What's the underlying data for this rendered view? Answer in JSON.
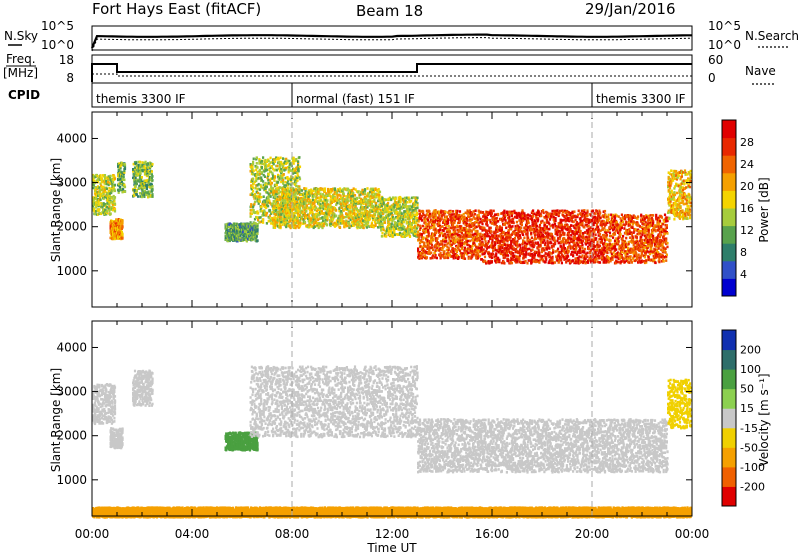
{
  "header": {
    "title": "Fort Hays East (fitACF)",
    "beam": "Beam 18",
    "date": "29/Jan/2016"
  },
  "side_labels": {
    "nsky": "N.Sky",
    "nsearch": "N.Search",
    "freq": "Freq.",
    "freq_unit": "[MHz]",
    "nave": "Nave",
    "cpid": "CPID"
  },
  "noise_axis": {
    "left_ticks": [
      "10^5",
      "10^0"
    ],
    "right_ticks": [
      "10^5",
      "10^0"
    ]
  },
  "freq_axis": {
    "left_ticks": [
      "18",
      "8"
    ],
    "right_ticks": [
      "60",
      "0"
    ]
  },
  "cpid_segments": [
    {
      "label": "themis 3300 IF",
      "start_hour": 0,
      "end_hour": 8
    },
    {
      "label": "normal (fast) 151 IF",
      "start_hour": 8,
      "end_hour": 20
    },
    {
      "label": "themis 3300 IF",
      "start_hour": 20,
      "end_hour": 24
    }
  ],
  "x_axis": {
    "label": "Time UT",
    "ticks": [
      "00:00",
      "04:00",
      "08:00",
      "12:00",
      "16:00",
      "20:00",
      "00:00"
    ],
    "range_hours": [
      0,
      24
    ]
  },
  "y_axis": {
    "label": "Slant Range [km]",
    "ticks": [
      1000,
      2000,
      3000,
      4000
    ],
    "range_km": [
      180,
      4600
    ]
  },
  "power_colorbar": {
    "label": "Power [dB]",
    "ticks": [
      "4",
      "8",
      "12",
      "16",
      "20",
      "24",
      "28"
    ],
    "colors": [
      "#0000d0",
      "#3050c8",
      "#2e7e6a",
      "#58a24c",
      "#a6cc3c",
      "#f4d400",
      "#f5a000",
      "#f06400",
      "#e82800",
      "#e00000"
    ]
  },
  "velocity_colorbar": {
    "label": "Velocity [m s⁻¹]",
    "ticks": [
      "200",
      "100",
      "50",
      "15",
      "-15",
      "-50",
      "-100",
      "-200"
    ],
    "colors": [
      "#1030b0",
      "#2e6e6a",
      "#4aa040",
      "#8cd050",
      "#c8c8c8",
      "#f0d000",
      "#f5a000",
      "#f06000",
      "#e00000"
    ]
  },
  "chart_data": [
    {
      "type": "heatmap",
      "title": "Fort Hays East (fitACF) Beam 18 29/Jan/2016",
      "panel": "Power",
      "xlabel": "Time UT",
      "ylabel": "Slant Range [km]",
      "colorbar_label": "Power [dB]",
      "colorbar_range": [
        0,
        30
      ],
      "xlim_hours": [
        0,
        24
      ],
      "ylim_km": [
        180,
        4600
      ],
      "echo_regions": [
        {
          "time_start_h": 0.0,
          "time_end_h": 0.9,
          "range_km": [
            2300,
            3200
          ],
          "power_db": 14
        },
        {
          "time_start_h": 0.7,
          "time_end_h": 1.2,
          "range_km": [
            1750,
            2200
          ],
          "power_db": 20
        },
        {
          "time_start_h": 1.0,
          "time_end_h": 1.3,
          "range_km": [
            2800,
            3500
          ],
          "power_db": 12
        },
        {
          "time_start_h": 1.6,
          "time_end_h": 2.4,
          "range_km": [
            2700,
            3500
          ],
          "power_db": 12
        },
        {
          "time_start_h": 5.3,
          "time_end_h": 6.6,
          "range_km": [
            1700,
            2100
          ],
          "power_db": 10
        },
        {
          "time_start_h": 6.3,
          "time_end_h": 8.3,
          "range_km": [
            2100,
            3600
          ],
          "power_db": 14
        },
        {
          "time_start_h": 7.2,
          "time_end_h": 11.5,
          "range_km": [
            2000,
            2900
          ],
          "power_db": 16
        },
        {
          "time_start_h": 11.5,
          "time_end_h": 13.0,
          "range_km": [
            1800,
            2700
          ],
          "power_db": 14
        },
        {
          "time_start_h": 13.0,
          "time_end_h": 15.5,
          "range_km": [
            1300,
            2400
          ],
          "power_db": 24
        },
        {
          "time_start_h": 15.5,
          "time_end_h": 20.5,
          "range_km": [
            1200,
            2400
          ],
          "power_db": 26
        },
        {
          "time_start_h": 20.5,
          "time_end_h": 23.0,
          "range_km": [
            1200,
            2300
          ],
          "power_db": 24
        },
        {
          "time_start_h": 23.0,
          "time_end_h": 24.0,
          "range_km": [
            2200,
            3300
          ],
          "power_db": 18
        }
      ]
    },
    {
      "type": "heatmap",
      "panel": "Velocity",
      "xlabel": "Time UT",
      "ylabel": "Slant Range [km]",
      "colorbar_label": "Velocity [m s⁻¹]",
      "colorbar_range": [
        -200,
        200
      ],
      "xlim_hours": [
        0,
        24
      ],
      "ylim_km": [
        180,
        4600
      ],
      "echo_regions": [
        {
          "time_start_h": 0.0,
          "time_end_h": 0.9,
          "range_km": [
            2300,
            3200
          ],
          "velocity_ms": 0
        },
        {
          "time_start_h": 0.7,
          "time_end_h": 1.2,
          "range_km": [
            1750,
            2200
          ],
          "velocity_ms": 0
        },
        {
          "time_start_h": 1.6,
          "time_end_h": 2.4,
          "range_km": [
            2700,
            3500
          ],
          "velocity_ms": 0
        },
        {
          "time_start_h": 5.3,
          "time_end_h": 6.6,
          "range_km": [
            1700,
            2100
          ],
          "velocity_ms": 70
        },
        {
          "time_start_h": 6.3,
          "time_end_h": 13.0,
          "range_km": [
            2000,
            3600
          ],
          "velocity_ms": 0
        },
        {
          "time_start_h": 13.0,
          "time_end_h": 23.0,
          "range_km": [
            1200,
            2400
          ],
          "velocity_ms": 0
        },
        {
          "time_start_h": 23.0,
          "time_end_h": 24.0,
          "range_km": [
            2200,
            3300
          ],
          "velocity_ms": -40
        },
        {
          "time_start_h": 0.0,
          "time_end_h": 24.0,
          "range_km": [
            180,
            400
          ],
          "velocity_ms": -60
        }
      ]
    }
  ]
}
